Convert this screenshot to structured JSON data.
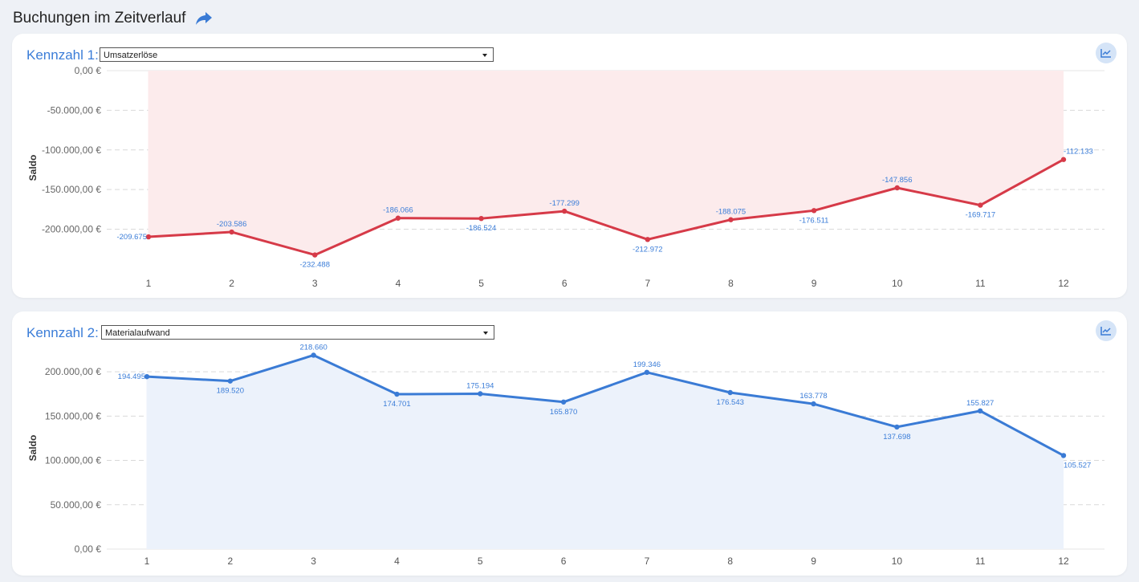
{
  "page": {
    "title": "Buchungen im Zeitverlauf"
  },
  "icons": {
    "share": "share-arrow-icon",
    "chart_toggle": "line-chart-icon"
  },
  "colors": {
    "accent": "#3b7dd8",
    "series1": "#d63a48",
    "series1_fill": "#fcebec",
    "series2": "#3a7bd5",
    "series2_fill": "#ecf2fb"
  },
  "panels": [
    {
      "label": "Kennzahl 1:",
      "select_value": "Umsatzerlöse",
      "ylabel": "Saldo",
      "yticks": [
        "0,00 €",
        "-50.000,00 €",
        "-100.000,00 €",
        "-150.000,00 €",
        "-200.000,00 €"
      ],
      "xticks": [
        "1",
        "2",
        "3",
        "4",
        "5",
        "6",
        "7",
        "8",
        "9",
        "10",
        "11",
        "12"
      ],
      "value_labels": [
        "-209.675",
        "-203.586",
        "-232.488",
        "-186.066",
        "-186.524",
        "-177.299",
        "-212.972",
        "-188.075",
        "-176.511",
        "-147.856",
        "-169.717",
        "-112.133"
      ]
    },
    {
      "label": "Kennzahl 2:",
      "select_value": "Materialaufwand",
      "ylabel": "Saldo",
      "yticks": [
        "200.000,00 €",
        "150.000,00 €",
        "100.000,00 €",
        "50.000,00 €",
        "0,00 €"
      ],
      "xticks": [
        "1",
        "2",
        "3",
        "4",
        "5",
        "6",
        "7",
        "8",
        "9",
        "10",
        "11",
        "12"
      ],
      "value_labels": [
        "194.495",
        "189.520",
        "218.660",
        "174.701",
        "175.194",
        "165.870",
        "199.346",
        "176.543",
        "163.778",
        "137.698",
        "155.827",
        "105.527"
      ]
    }
  ],
  "chart_data": [
    {
      "type": "area",
      "x": [
        1,
        2,
        3,
        4,
        5,
        6,
        7,
        8,
        9,
        10,
        11,
        12
      ],
      "values": [
        -209675,
        -203586,
        -232488,
        -186066,
        -186524,
        -177299,
        -212972,
        -188075,
        -176511,
        -147856,
        -169717,
        -112133
      ],
      "ylabel": "Saldo",
      "ylim": [
        -240000,
        0
      ],
      "yticks": [
        0,
        -50000,
        -100000,
        -150000,
        -200000
      ],
      "grid": true
    },
    {
      "type": "area",
      "x": [
        1,
        2,
        3,
        4,
        5,
        6,
        7,
        8,
        9,
        10,
        11,
        12
      ],
      "values": [
        194495,
        189520,
        218660,
        174701,
        175194,
        165870,
        199346,
        176543,
        163778,
        137698,
        155827,
        105527
      ],
      "ylabel": "Saldo",
      "ylim": [
        0,
        220000
      ],
      "yticks": [
        200000,
        150000,
        100000,
        50000,
        0
      ],
      "grid": true
    }
  ]
}
